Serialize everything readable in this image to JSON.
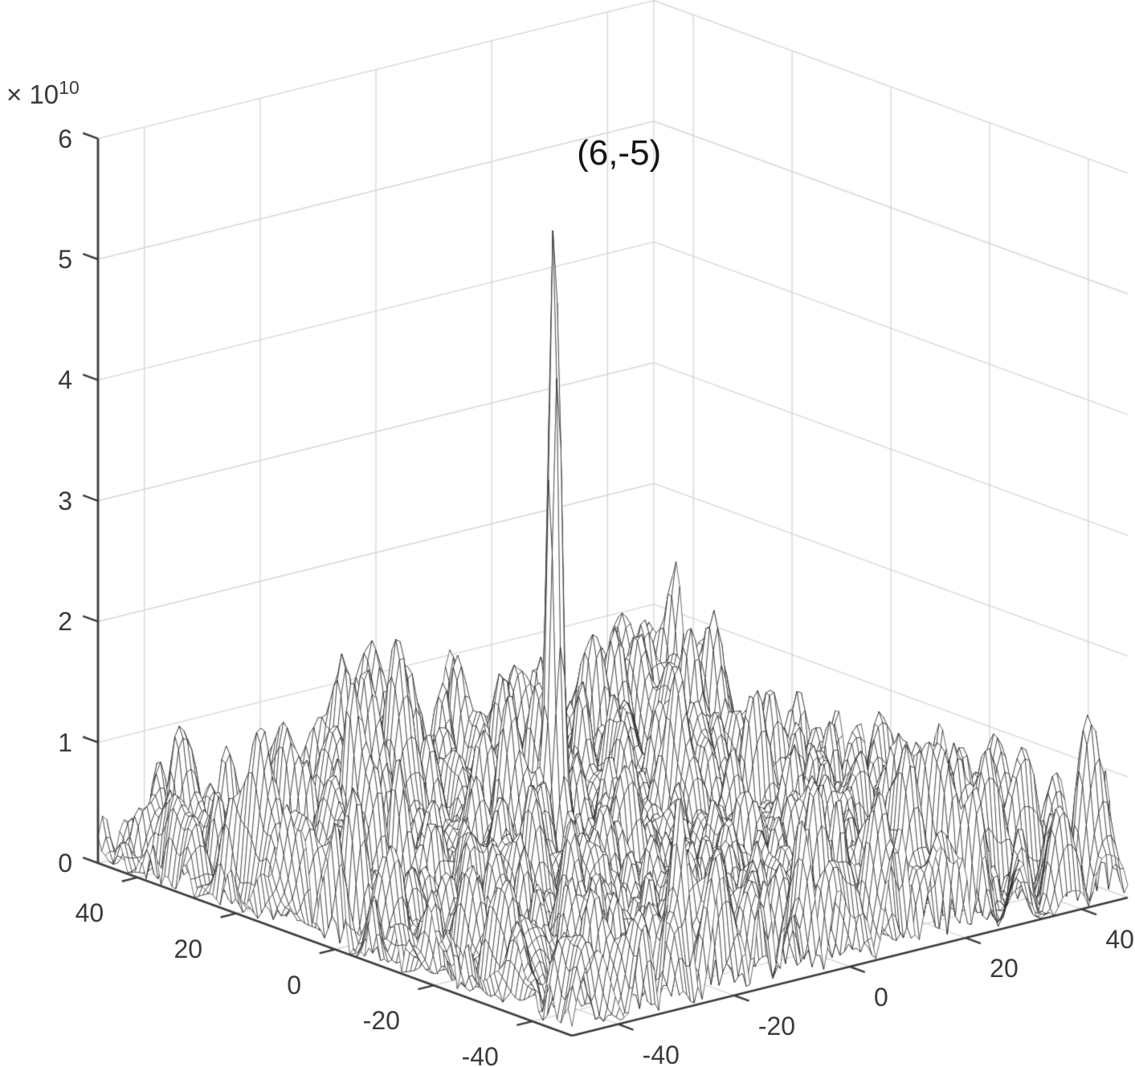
{
  "figure": {
    "background": "#ffffff"
  },
  "chart_data": {
    "type": "surface",
    "subtype": "3d-wireframe-mesh",
    "title": "",
    "annotation": {
      "text": "(6,-5)",
      "x": 6,
      "y": -5
    },
    "x_axis": {
      "side": "bottom-left",
      "tick_labels": [
        "40",
        "20",
        "0",
        "-20",
        "-40"
      ],
      "tick_values": [
        40,
        20,
        0,
        -20,
        -40
      ],
      "range": [
        -48,
        48
      ]
    },
    "y_axis": {
      "side": "bottom-right",
      "tick_labels": [
        "-40",
        "-20",
        "0",
        "20",
        "40"
      ],
      "tick_values": [
        -40,
        -20,
        0,
        20,
        40
      ],
      "range": [
        -48,
        48
      ]
    },
    "z_axis": {
      "exponent_prefix": "× 10",
      "exponent": "10",
      "tick_labels": [
        "0",
        "1",
        "2",
        "3",
        "4",
        "5",
        "6"
      ],
      "tick_values_e10": [
        0,
        1,
        2,
        3,
        4,
        5,
        6
      ],
      "range_e10": [
        0,
        6
      ]
    },
    "surface": {
      "grid_cells": 128,
      "peak": {
        "x": 6,
        "y": -5,
        "height_e10": 5.45,
        "sigma_units": 0.9
      },
      "noise": {
        "seed": 7,
        "num_waves": 42,
        "wavelength_min_units": 4,
        "wavelength_max_units": 14,
        "mean_abs_e10": 0.33,
        "shape_exponent": 1.15
      }
    },
    "grid": true,
    "colors": {
      "background": "#ffffff",
      "mesh_line": "#1f1f1f",
      "mesh_face": "#ffffff",
      "grid_line": "#d7d7d7",
      "axis_line": "#3b3b3b",
      "label_text": "#3a3a3a",
      "annotation_text": "#141414"
    }
  }
}
